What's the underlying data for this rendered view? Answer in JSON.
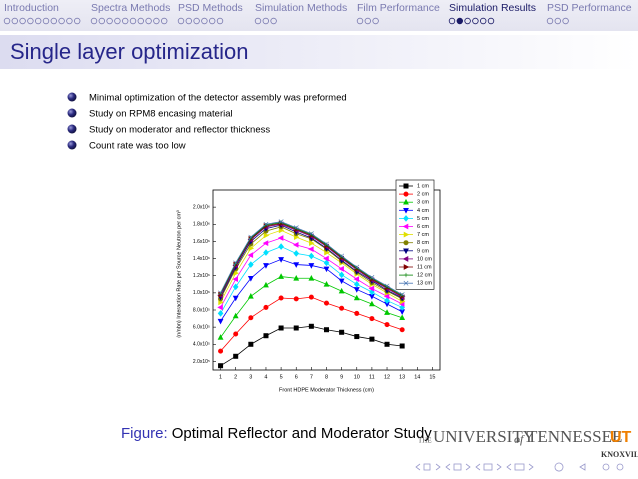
{
  "navigation": [
    {
      "label": "Introduction",
      "dots": 10
    },
    {
      "label": "Spectra Methods",
      "dots": 10
    },
    {
      "label": "PSD Methods",
      "dots": 6
    },
    {
      "label": "Simulation Methods",
      "dots": 3
    },
    {
      "label": "Film Performance",
      "dots": 3
    },
    {
      "label": "Simulation Results",
      "dots": 6,
      "active": true,
      "active_dot": 1
    },
    {
      "label": "PSD Performance",
      "dots": 3
    }
  ],
  "title": "Single layer optimization",
  "bullets": [
    "Minimal optimization of the detector assembly was preformed",
    "Study on RPM8 encasing material",
    "Study on moderator and reflector thickness",
    "Count rate was too low"
  ],
  "caption": {
    "prefix": "Figure:",
    "text": "Optimal Reflector and Moderator Study"
  },
  "logo": {
    "the": "THE",
    "university": "UNIVERSITY",
    "of": "of",
    "state": "TENNESSEE",
    "mark": "UT",
    "city": "KNOXVILLE"
  },
  "chart_data": {
    "type": "line",
    "x_label": "Front HDPE Moderator Thickness (cm)",
    "y_label": "(n/nbn) Interaction Rate per Source Neutron per cm³",
    "x": [
      1,
      2,
      3,
      4,
      5,
      6,
      7,
      8,
      9,
      10,
      11,
      12,
      13
    ],
    "xlim": [
      0.5,
      15.5
    ],
    "xticks": [
      1,
      2,
      3,
      4,
      5,
      6,
      7,
      8,
      9,
      10,
      11,
      12,
      13,
      14,
      15
    ],
    "ylim": [
      100000,
      2200000
    ],
    "yticks": [
      {
        "value": 200000,
        "label": "2.0x10⁵"
      },
      {
        "value": 400000,
        "label": "4.0x10⁵"
      },
      {
        "value": 600000,
        "label": "6.0x10⁵"
      },
      {
        "value": 800000,
        "label": "8.0x10⁵"
      },
      {
        "value": 1000000,
        "label": "1.0x10⁶"
      },
      {
        "value": 1200000,
        "label": "1.2x10⁶"
      },
      {
        "value": 1400000,
        "label": "1.4x10⁶"
      },
      {
        "value": 1600000,
        "label": "1.6x10⁶"
      },
      {
        "value": 1800000,
        "label": "1.8x10⁶"
      },
      {
        "value": 2000000,
        "label": "2.0x10⁶"
      }
    ],
    "legend": "upper right",
    "series": [
      {
        "name": "1 cm",
        "color": "#000000",
        "marker": "square",
        "values": [
          150000,
          260000,
          400000,
          500000,
          590000,
          590000,
          610000,
          570000,
          540000,
          490000,
          460000,
          400000,
          380000
        ]
      },
      {
        "name": "2 cm",
        "color": "#ff0000",
        "marker": "circle",
        "values": [
          320000,
          520000,
          710000,
          830000,
          940000,
          930000,
          950000,
          880000,
          820000,
          760000,
          700000,
          630000,
          570000
        ]
      },
      {
        "name": "3 cm",
        "color": "#00c800",
        "marker": "triangle-up",
        "values": [
          480000,
          730000,
          960000,
          1090000,
          1190000,
          1170000,
          1170000,
          1100000,
          1020000,
          940000,
          870000,
          770000,
          710000
        ]
      },
      {
        "name": "4 cm",
        "color": "#0000ff",
        "marker": "triangle-down",
        "values": [
          670000,
          940000,
          1170000,
          1320000,
          1390000,
          1330000,
          1320000,
          1280000,
          1140000,
          1040000,
          960000,
          870000,
          780000
        ]
      },
      {
        "name": "5 cm",
        "color": "#00e0ff",
        "marker": "diamond",
        "values": [
          760000,
          1070000,
          1330000,
          1470000,
          1540000,
          1460000,
          1430000,
          1350000,
          1210000,
          1100000,
          1010000,
          910000,
          830000
        ]
      },
      {
        "name": "6 cm",
        "color": "#ff00ff",
        "marker": "triangle-left",
        "values": [
          830000,
          1160000,
          1440000,
          1580000,
          1640000,
          1560000,
          1510000,
          1400000,
          1280000,
          1160000,
          1050000,
          960000,
          870000
        ]
      },
      {
        "name": "7 cm",
        "color": "#e0e000",
        "marker": "triangle-right",
        "values": [
          890000,
          1230000,
          1520000,
          1670000,
          1730000,
          1650000,
          1580000,
          1470000,
          1350000,
          1220000,
          1100000,
          1000000,
          900000
        ]
      },
      {
        "name": "8 cm",
        "color": "#808000",
        "marker": "circle",
        "values": [
          930000,
          1280000,
          1570000,
          1720000,
          1770000,
          1690000,
          1630000,
          1510000,
          1370000,
          1240000,
          1120000,
          1020000,
          930000
        ]
      },
      {
        "name": "9 cm",
        "color": "#000080",
        "marker": "triangle-down",
        "values": [
          950000,
          1300000,
          1600000,
          1750000,
          1790000,
          1710000,
          1640000,
          1520000,
          1380000,
          1250000,
          1140000,
          1030000,
          940000
        ]
      },
      {
        "name": "10 cm",
        "color": "#800080",
        "marker": "triangle-left",
        "values": [
          970000,
          1320000,
          1620000,
          1770000,
          1800000,
          1730000,
          1660000,
          1540000,
          1400000,
          1270000,
          1150000,
          1050000,
          950000
        ]
      },
      {
        "name": "11 cm",
        "color": "#800000",
        "marker": "triangle-right",
        "values": [
          980000,
          1330000,
          1630000,
          1780000,
          1810000,
          1740000,
          1670000,
          1550000,
          1410000,
          1280000,
          1160000,
          1060000,
          960000
        ]
      },
      {
        "name": "12 cm",
        "color": "#008000",
        "marker": "plus",
        "values": [
          990000,
          1340000,
          1640000,
          1790000,
          1820000,
          1750000,
          1680000,
          1560000,
          1420000,
          1290000,
          1170000,
          1070000,
          970000
        ]
      },
      {
        "name": "13 cm",
        "color": "#4070b0",
        "marker": "cross",
        "values": [
          1000000,
          1350000,
          1650000,
          1800000,
          1830000,
          1760000,
          1690000,
          1570000,
          1430000,
          1300000,
          1180000,
          1080000,
          980000
        ]
      }
    ]
  }
}
